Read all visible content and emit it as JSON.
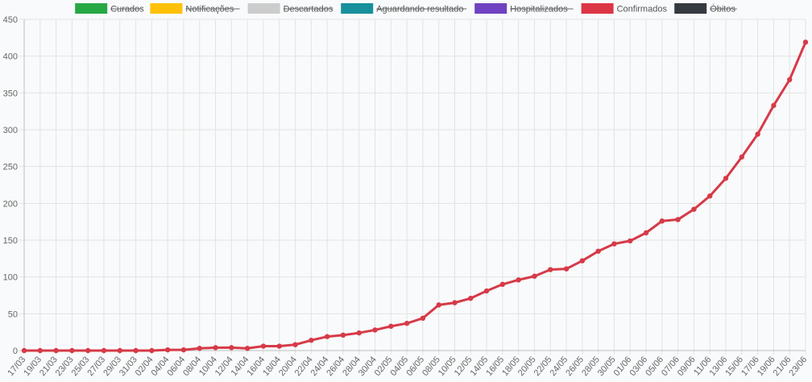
{
  "chart_data": {
    "type": "line",
    "title": "",
    "xlabel": "",
    "ylabel": "",
    "ylim": [
      0,
      450
    ],
    "yticks": [
      "0",
      "50",
      "100",
      "150",
      "200",
      "250",
      "300",
      "350",
      "400",
      "450"
    ],
    "legend_position": "top-center",
    "legend": [
      {
        "name": "Curados",
        "color": "#28a745",
        "hidden": true
      },
      {
        "name": "Notificações",
        "color": "#ffc107",
        "hidden": true
      },
      {
        "name": "Descartados",
        "color": "#cccccc",
        "hidden": true
      },
      {
        "name": "Aguardando resultado",
        "color": "#17909c",
        "hidden": true
      },
      {
        "name": "Hospitalizados",
        "color": "#6f42c1",
        "hidden": true
      },
      {
        "name": "Confirmados",
        "color": "#dc3545",
        "hidden": false
      },
      {
        "name": "Óbitos",
        "color": "#343a40",
        "hidden": true
      }
    ],
    "x": [
      "17/03",
      "19/03",
      "21/03",
      "23/03",
      "25/03",
      "27/03",
      "29/03",
      "31/03",
      "02/04",
      "04/04",
      "06/04",
      "08/04",
      "10/04",
      "12/04",
      "14/04",
      "16/04",
      "18/04",
      "20/04",
      "22/04",
      "24/04",
      "26/04",
      "28/04",
      "30/04",
      "02/05",
      "04/05",
      "06/05",
      "08/05",
      "10/05",
      "12/05",
      "14/05",
      "16/05",
      "18/05",
      "20/05",
      "22/05",
      "24/05",
      "26/05",
      "28/05",
      "30/05",
      "01/06",
      "03/06",
      "05/06",
      "07/06",
      "09/06",
      "11/06",
      "13/06",
      "15/06",
      "17/06",
      "19/06",
      "21/06",
      "23/06"
    ],
    "series": [
      {
        "name": "Confirmados",
        "color": "#d63a48",
        "values": [
          0,
          0,
          0,
          0,
          0,
          0,
          0,
          0,
          0,
          1,
          1,
          3,
          4,
          4,
          3,
          6,
          6,
          8,
          14,
          19,
          21,
          24,
          28,
          33,
          37,
          44,
          62,
          65,
          71,
          81,
          90,
          96,
          101,
          110,
          111,
          122,
          135,
          145,
          149,
          160,
          176,
          178,
          192,
          210,
          234,
          263,
          294,
          333,
          368,
          419
        ]
      }
    ]
  }
}
